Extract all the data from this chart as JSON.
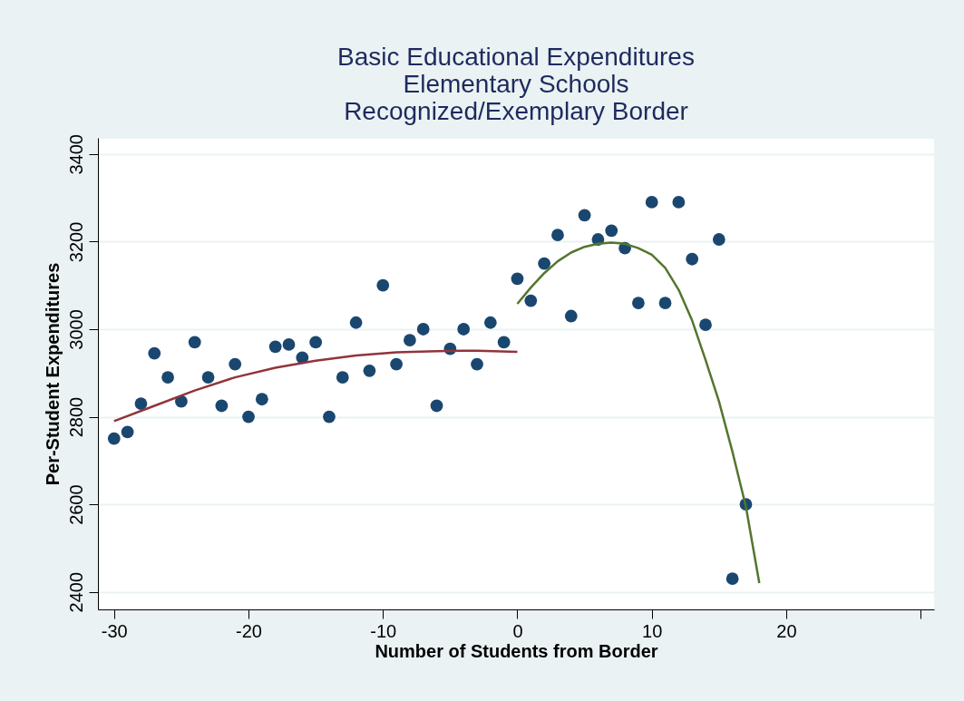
{
  "chart_data": {
    "type": "scatter",
    "title": "Basic Educational Expenditures\nElementary Schools\nRecognized/Exemplary Border",
    "xlabel": "Number of Students from Border",
    "ylabel": "Per-Student Expenditures",
    "xlim": [
      -31.2,
      31
    ],
    "xticks": [
      -30,
      -20,
      -10,
      0,
      10,
      20,
      {
        "value": 30,
        "label": null
      }
    ],
    "ylim": [
      2360,
      3437
    ],
    "yticks": [
      2400,
      2600,
      2800,
      3000,
      3200,
      3400
    ],
    "grid": "y",
    "marker": "circle",
    "series": [
      {
        "color": "#1a476f",
        "x": [
          -30,
          -29,
          -28,
          -27,
          -26,
          -25,
          -24,
          -23,
          -22,
          -21,
          -20,
          -19,
          -18,
          -17,
          -16,
          -15,
          -14,
          -13,
          -12,
          -11,
          -10,
          -9,
          -8,
          -7,
          -6,
          -5,
          -4,
          -3,
          -2,
          -1,
          0,
          1,
          2,
          3,
          4,
          5,
          6,
          7,
          8,
          9,
          10,
          11,
          12,
          13,
          14,
          15,
          16,
          17
        ],
        "values": [
          2750,
          2765,
          2830,
          2945,
          2890,
          2835,
          2970,
          2890,
          2825,
          2920,
          2800,
          2840,
          2960,
          2965,
          2935,
          2970,
          2800,
          2890,
          3015,
          2905,
          3100,
          2920,
          2975,
          3000,
          2825,
          2955,
          3000,
          2920,
          3015,
          2970,
          3115,
          3065,
          3150,
          3215,
          3030,
          3260,
          3205,
          3225,
          3185,
          3060,
          3290,
          3060,
          3290,
          3160,
          3010,
          3205,
          2430,
          2600
        ]
      },
      {
        "type": "line",
        "color": "#90353b",
        "marker": "none",
        "x": [
          -30,
          -27,
          -24,
          -21,
          -18,
          -15,
          -12,
          -9,
          -6,
          -3,
          0
        ],
        "values": [
          2790,
          2825,
          2860,
          2890,
          2912,
          2928,
          2940,
          2947,
          2950,
          2951,
          2948
        ]
      },
      {
        "type": "line",
        "color": "#55752f",
        "marker": "none",
        "x": [
          0,
          1,
          2,
          3,
          4,
          5,
          6,
          7,
          8,
          9,
          10,
          11,
          12,
          13,
          14,
          15,
          16,
          17,
          18
        ],
        "values": [
          3058,
          3095,
          3128,
          3155,
          3175,
          3188,
          3195,
          3198,
          3195,
          3185,
          3170,
          3140,
          3090,
          3020,
          2930,
          2835,
          2720,
          2595,
          2420
        ]
      }
    ]
  }
}
